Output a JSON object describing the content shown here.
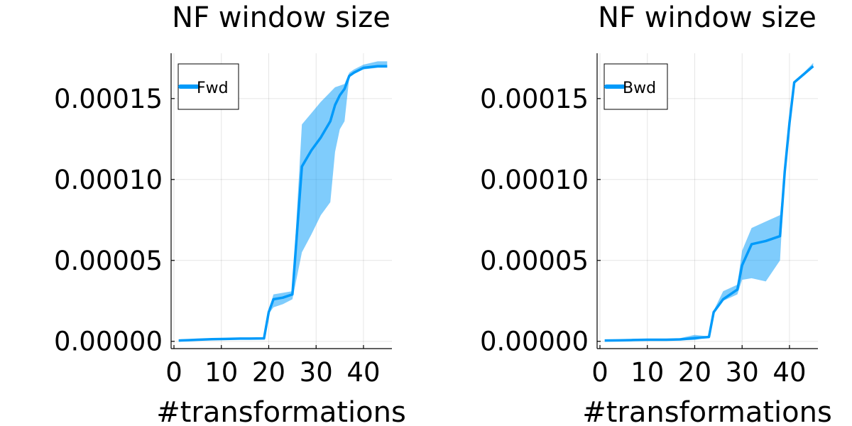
{
  "chart_data": [
    {
      "type": "line",
      "title": "NF window size",
      "xlabel": "#transformations",
      "ylabel": "",
      "xlim": [
        -0.6,
        46
      ],
      "ylim": [
        -4.5e-06,
        0.000178
      ],
      "xticks": [
        0,
        10,
        20,
        30,
        40
      ],
      "xtick_labels": [
        "0",
        "10",
        "20",
        "30",
        "40"
      ],
      "yticks": [
        0,
        5e-05,
        0.0001,
        0.00015
      ],
      "ytick_labels": [
        "0.00000",
        "0.00005",
        "0.00010",
        "0.00015"
      ],
      "grid": true,
      "legend": "top-left",
      "color": "#009AFA",
      "series": [
        {
          "name": "Fwd",
          "x": [
            1,
            3,
            5,
            8,
            11,
            14,
            16,
            19,
            20,
            21,
            23,
            25,
            27,
            29,
            31,
            33,
            34,
            35,
            36,
            37,
            38,
            40,
            43,
            45
          ],
          "y": [
            5e-07,
            7e-07,
            1e-06,
            1.3e-06,
            1.5e-06,
            1.7e-06,
            1.7e-06,
            1.8e-06,
            1.8e-05,
            2.6e-05,
            2.7e-05,
            2.9e-05,
            0.000108,
            0.000118,
            0.000126,
            0.000136,
            0.000146,
            0.000152,
            0.000156,
            0.000164,
            0.000166,
            0.000169,
            0.00017,
            0.00017
          ],
          "y_lower": [
            5e-07,
            7e-07,
            1e-06,
            1.3e-06,
            1.5e-06,
            1.7e-06,
            1.7e-06,
            1.8e-06,
            1.7e-05,
            2.1e-05,
            2.3e-05,
            2.6e-05,
            5.5e-05,
            6.6e-05,
            7.8e-05,
            8.6e-05,
            0.000117,
            0.000131,
            0.000136,
            0.000163,
            0.000166,
            0.000168,
            0.000169,
            0.000169
          ],
          "y_upper": [
            5e-07,
            7e-07,
            1e-06,
            1.3e-06,
            1.5e-06,
            1.7e-06,
            1.7e-06,
            1.8e-06,
            1.9e-05,
            2.9e-05,
            3e-05,
            3.1e-05,
            0.000134,
            0.000141,
            0.000148,
            0.000154,
            0.000157,
            0.000158,
            0.000159,
            0.000166,
            0.000168,
            0.000171,
            0.000173,
            0.000173
          ]
        }
      ]
    },
    {
      "type": "line",
      "title": "NF window size",
      "xlabel": "#transformations",
      "ylabel": "",
      "xlim": [
        -0.6,
        46
      ],
      "ylim": [
        -4.5e-06,
        0.000178
      ],
      "xticks": [
        0,
        10,
        20,
        30,
        40
      ],
      "xtick_labels": [
        "0",
        "10",
        "20",
        "30",
        "40"
      ],
      "yticks": [
        0,
        5e-05,
        0.0001,
        0.00015
      ],
      "ytick_labels": [
        "0.00000",
        "0.00005",
        "0.00010",
        "0.00015"
      ],
      "grid": true,
      "legend": "top-left",
      "color": "#009AFA",
      "series": [
        {
          "name": "Bwd",
          "x": [
            1,
            4,
            7,
            10,
            14,
            17,
            20,
            23,
            24,
            26,
            29,
            30,
            32,
            35,
            38,
            39,
            40,
            41,
            43,
            45
          ],
          "y": [
            5e-07,
            6e-07,
            8e-07,
            1e-06,
            1e-06,
            1.2e-06,
            2e-06,
            2.7e-06,
            1.8e-05,
            2.6e-05,
            3.2e-05,
            4.7e-05,
            6e-05,
            6.2e-05,
            6.5e-05,
            0.000105,
            0.000135,
            0.00016,
            0.000165,
            0.00017
          ],
          "y_lower": [
            5e-07,
            6e-07,
            8e-07,
            1e-06,
            1e-06,
            6e-07,
            8e-07,
            2.5e-06,
            1.7e-05,
            2.5e-05,
            2.9e-05,
            3.8e-05,
            3.9e-05,
            3.7e-05,
            5e-05,
            0.000103,
            0.000134,
            0.000159,
            0.000165,
            0.000169
          ],
          "y_upper": [
            5e-07,
            6e-07,
            8e-07,
            1e-06,
            1e-06,
            2e-06,
            4e-06,
            3e-06,
            1.9e-05,
            3.1e-05,
            3.5e-05,
            5.6e-05,
            7e-05,
            7.4e-05,
            7.8e-05,
            0.000107,
            0.000136,
            0.000161,
            0.000166,
            0.000172
          ]
        }
      ]
    }
  ]
}
